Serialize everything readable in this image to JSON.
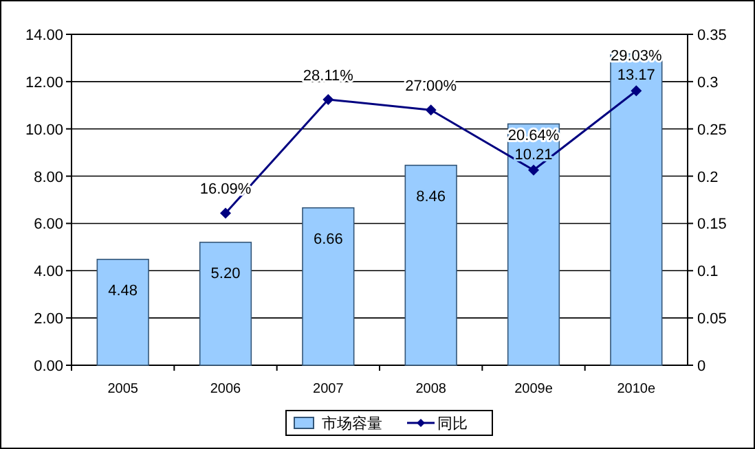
{
  "chart_data": {
    "type": "bar",
    "categories": [
      "2005",
      "2006",
      "2007",
      "2008",
      "2009e",
      "2010e"
    ],
    "series": [
      {
        "name": "市场容量",
        "color": "#99ccff",
        "values": [
          4.48,
          5.2,
          6.66,
          8.46,
          10.21,
          13.17
        ],
        "value_labels": [
          "4.48",
          "5.20",
          "6.66",
          "8.46",
          "10.21",
          "13.17"
        ]
      },
      {
        "name": "同比",
        "type": "line",
        "axis": "y2",
        "color": "#000080",
        "marker": "diamond",
        "values": [
          null,
          0.1609,
          0.2811,
          0.27,
          0.2064,
          0.2903
        ],
        "value_labels": [
          null,
          "16.09%",
          "28.11%",
          "27.00%",
          "20.64%",
          "29.03%"
        ]
      }
    ],
    "ylim": [
      0,
      14
    ],
    "yticks": [
      {
        "value": 0,
        "label": "0.00"
      },
      {
        "value": 2,
        "label": "2.00"
      },
      {
        "value": 4,
        "label": "4.00"
      },
      {
        "value": 6,
        "label": "6.00"
      },
      {
        "value": 8,
        "label": "8.00"
      },
      {
        "value": 10,
        "label": "10.00"
      },
      {
        "value": 12,
        "label": "12.00"
      },
      {
        "value": 14,
        "label": "14.00"
      }
    ],
    "y2lim": [
      0,
      0.35
    ],
    "y2ticks": [
      0,
      0.05,
      0.1,
      0.15,
      0.2,
      0.25,
      0.3,
      0.35
    ],
    "grid": "y",
    "legend": "bottom"
  }
}
